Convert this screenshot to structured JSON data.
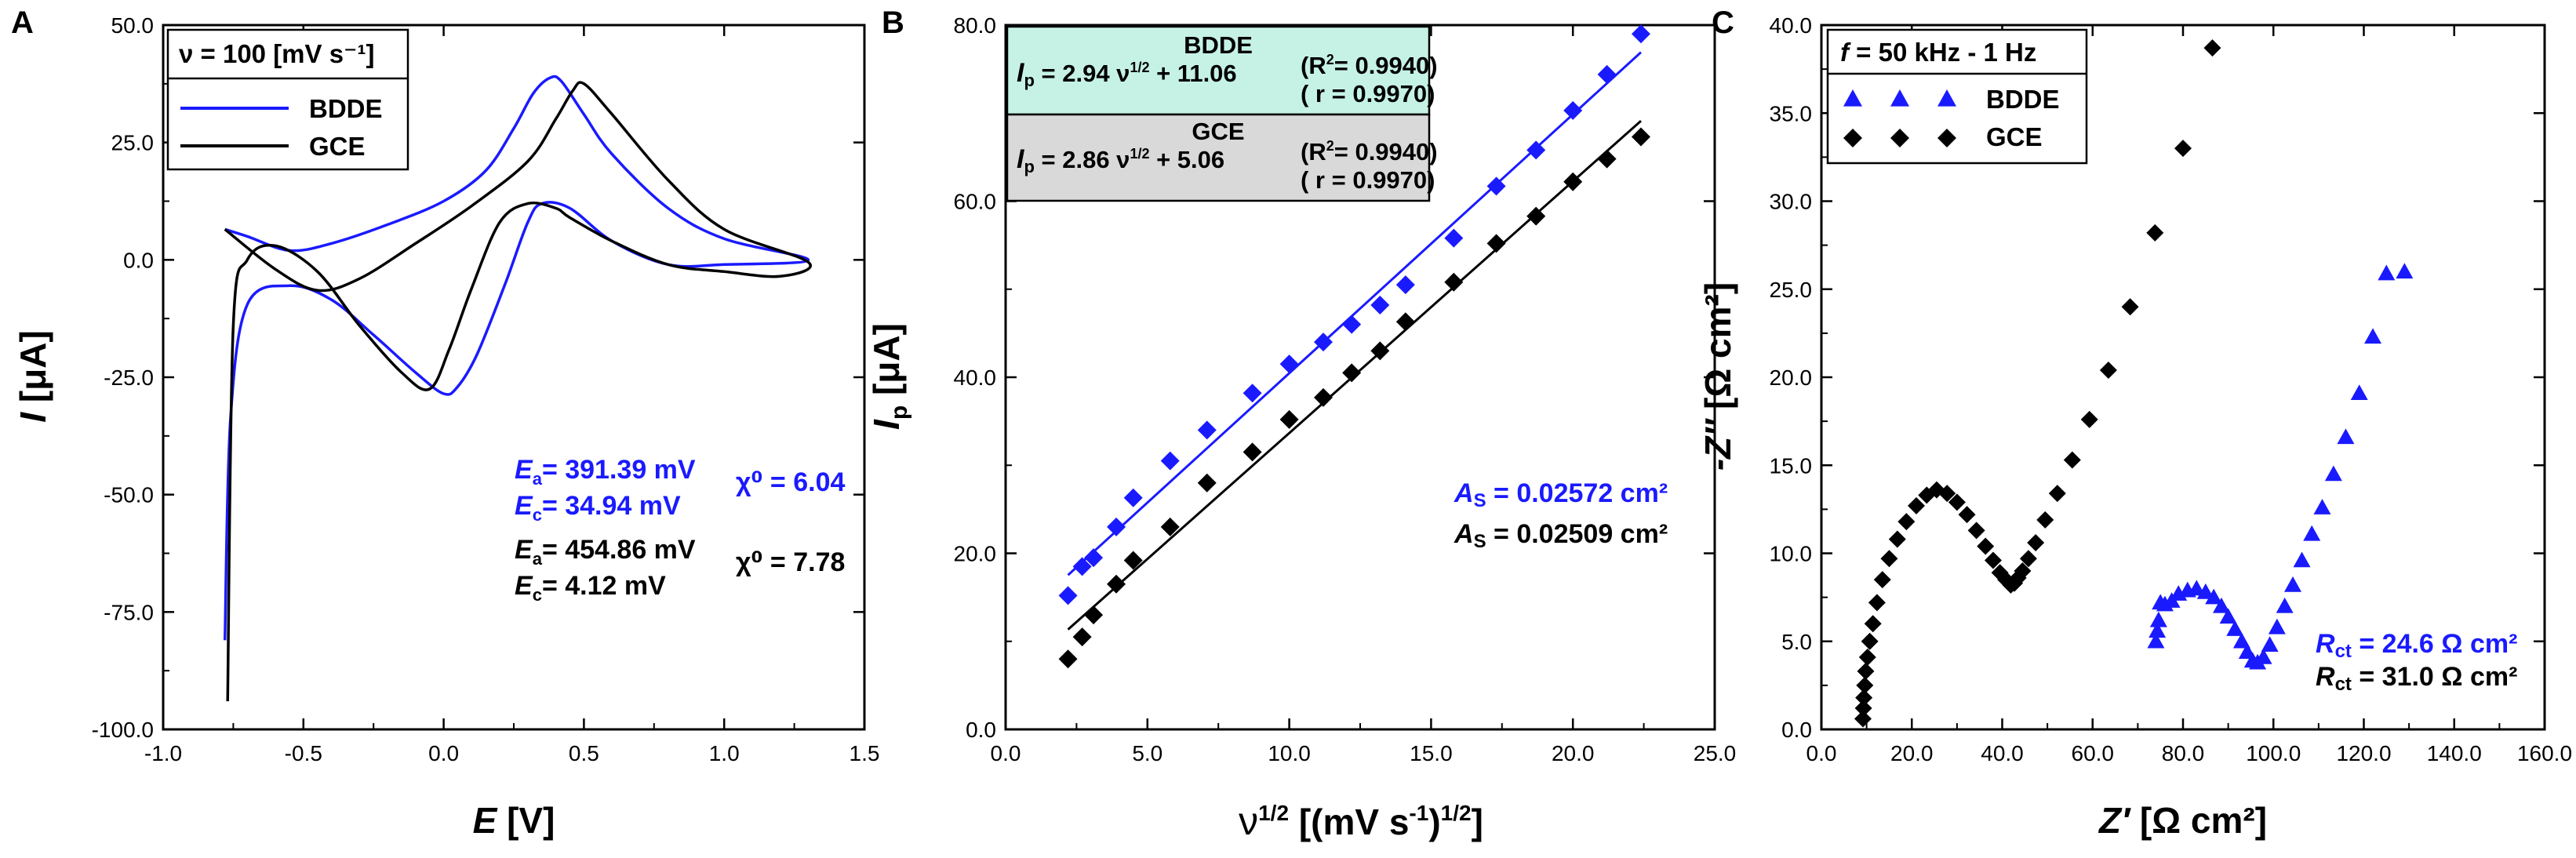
{
  "chart_data": [
    {
      "panel": "A",
      "type": "line",
      "xlabel": "E [V]",
      "xlabel_italic": "E",
      "xlabel_unit": "[V]",
      "ylabel": "I [μA]",
      "ylabel_italic": "I",
      "ylabel_unit": "[μA]",
      "xlim": [
        -1.0,
        1.5
      ],
      "ylim": [
        -100.0,
        50.0
      ],
      "xticks": [
        -1.0,
        -0.5,
        0.0,
        0.5,
        1.0,
        1.5
      ],
      "xtick_labels": [
        "-1.0",
        "-0.5",
        "0.0",
        "0.5",
        "1.0",
        "1.5"
      ],
      "yticks": [
        -100.0,
        -75.0,
        -50.0,
        -25.0,
        0.0,
        25.0,
        50.0
      ],
      "ytick_labels": [
        "-100.0",
        "-75.0",
        "-50.0",
        "-25.0",
        "0.0",
        "25.0",
        "50.0"
      ],
      "legend_title": "ν = 100 [mV s⁻¹]",
      "series": [
        {
          "name": "BDDE",
          "color": "#1a1aff",
          "x": [
            -0.78,
            -0.7,
            -0.55,
            -0.4,
            -0.2,
            0.0,
            0.15,
            0.25,
            0.32,
            0.38,
            0.42,
            0.5,
            0.6,
            0.8,
            1.0,
            1.3,
            1.0,
            0.8,
            0.6,
            0.45,
            0.35,
            0.3,
            0.22,
            0.12,
            0.05,
            0.0,
            -0.1,
            -0.25,
            -0.4,
            -0.55,
            -0.7,
            -0.76,
            -0.78
          ],
          "y": [
            6.5,
            5.0,
            2.0,
            3.5,
            7.5,
            12.5,
            19.0,
            28.0,
            35.5,
            38.8,
            38.0,
            31.0,
            22.5,
            11.0,
            4.5,
            0.0,
            -1.0,
            -1.0,
            4.0,
            11.0,
            12.0,
            8.0,
            -5.0,
            -20.0,
            -27.0,
            -28.5,
            -24.0,
            -16.0,
            -8.5,
            -5.5,
            -9.5,
            -34.0,
            -81.0
          ]
        },
        {
          "name": "GCE",
          "color": "#000000",
          "x": [
            -0.78,
            -0.6,
            -0.45,
            -0.3,
            -0.1,
            0.1,
            0.3,
            0.4,
            0.46,
            0.5,
            0.6,
            0.8,
            1.0,
            1.3,
            1.2,
            1.0,
            0.8,
            0.6,
            0.45,
            0.4,
            0.3,
            0.2,
            0.1,
            0.02,
            -0.05,
            -0.15,
            -0.3,
            -0.45,
            -0.6,
            -0.7,
            -0.75,
            -0.77
          ],
          "y": [
            6.5,
            -2.0,
            -6.5,
            -4.0,
            3.5,
            11.5,
            21.0,
            30.0,
            36.0,
            37.5,
            31.0,
            17.0,
            6.5,
            -0.5,
            -3.5,
            -2.5,
            -1.0,
            4.0,
            9.0,
            11.0,
            12.0,
            8.0,
            -6.0,
            -19.0,
            -27.5,
            -24.0,
            -14.0,
            -2.5,
            3.0,
            0.0,
            -14.0,
            -94.0
          ]
        }
      ],
      "annotations": {
        "bdde_ea": "= 391.39 mV",
        "bdde_ec": "= 34.94   mV",
        "bdde_chi": "χ⁰ = 6.04",
        "gce_ea": "= 454.86 mV",
        "gce_ec": "= 4.12     mV",
        "gce_chi": "χ⁰ = 7.78",
        "ea_symbol": "E",
        "ea_sub": "a",
        "ec_sub": "c"
      }
    },
    {
      "panel": "B",
      "type": "scatter",
      "xlabel": "ν^1/2 [(mV s⁻¹)^1/2]",
      "xlabel_nu": "ν",
      "xlabel_sup": "1/2",
      "xlabel_main": "[(mV s",
      "xlabel_minus": "-1",
      "xlabel_close": ")",
      "xlabel_sup2": "1/2",
      "xlabel_end": "]",
      "ylabel": "I_p [μA]",
      "ylabel_italic": "I",
      "ylabel_sub": "p",
      "ylabel_unit": " [μA]",
      "xlim": [
        0.0,
        25.0
      ],
      "ylim": [
        0.0,
        80.0
      ],
      "xticks": [
        0.0,
        5.0,
        10.0,
        15.0,
        20.0,
        25.0
      ],
      "xtick_labels": [
        "0.0",
        "5.0",
        "10.0",
        "15.0",
        "20.0",
        "25.0"
      ],
      "yticks": [
        0.0,
        20.0,
        40.0,
        60.0,
        80.0
      ],
      "ytick_labels": [
        "0.0",
        "20.0",
        "40.0",
        "60.0",
        "80.0"
      ],
      "series": [
        {
          "name": "BDDE",
          "color": "#1a1aff",
          "marker": "diamond",
          "x": [
            2.2,
            2.7,
            3.1,
            3.9,
            4.5,
            5.8,
            7.1,
            8.7,
            10.0,
            11.2,
            12.2,
            13.2,
            14.1,
            15.8,
            17.3,
            18.7,
            20.0,
            21.2,
            22.4
          ],
          "y": [
            15.2,
            18.5,
            19.5,
            23.0,
            26.3,
            30.5,
            34.0,
            38.2,
            41.5,
            44.0,
            46.0,
            48.2,
            50.5,
            55.8,
            61.7,
            65.8,
            70.3,
            74.4,
            79.0
          ],
          "fit": {
            "slope": 2.94,
            "intercept": 11.06
          }
        },
        {
          "name": "GCE",
          "color": "#000000",
          "marker": "diamond",
          "x": [
            2.2,
            2.7,
            3.1,
            3.9,
            4.5,
            5.8,
            7.1,
            8.7,
            10.0,
            11.2,
            12.2,
            13.2,
            14.1,
            15.8,
            17.3,
            18.7,
            20.0,
            21.2,
            22.4
          ],
          "y": [
            8.0,
            10.5,
            13.0,
            16.5,
            19.2,
            23.0,
            28.0,
            31.5,
            35.2,
            37.7,
            40.5,
            43.0,
            46.3,
            50.8,
            55.2,
            58.3,
            62.2,
            64.8,
            67.3
          ],
          "fit": {
            "slope": 2.86,
            "intercept": 5.06
          }
        }
      ],
      "equations": {
        "bdde_name": "BDDE",
        "bdde_eq_i": "I",
        "bdde_eq_p": "p",
        "bdde_eq_main": " = 2.94 ν",
        "bdde_eq_sup": "1/2",
        "bdde_eq_tail": " + 11.06",
        "bdde_r2_pre": "(R",
        "bdde_r2_sup": "2",
        "bdde_r2_post": "= 0.9940)",
        "bdde_r": "( r = 0.9970)",
        "gce_name": "GCE",
        "gce_eq_i": "I",
        "gce_eq_p": "p",
        "gce_eq_main": " = 2.86 ν",
        "gce_eq_sup": "1/2",
        "gce_eq_tail": " + 5.06",
        "gce_r2_pre": "(R",
        "gce_r2_sup": "2",
        "gce_r2_post": "= 0.9940)",
        "gce_r": "( r = 0.9970)",
        "bdde_box_color": "#c6f2e6",
        "gce_box_color": "#d9d9d9"
      },
      "annotations": {
        "as_symbol": "A",
        "as_sub": "S",
        "bdde_as": " = 0.02572 cm²",
        "gce_as": " = 0.02509 cm²"
      }
    },
    {
      "panel": "C",
      "type": "scatter",
      "xlabel": "Z′ [Ω cm²]",
      "xlabel_italic": "Z′",
      "xlabel_unit": " [Ω cm²]",
      "ylabel": "-Z″ [Ω cm²]",
      "ylabel_italic": "-Z″",
      "ylabel_unit": " [Ω cm²]",
      "xlim": [
        0.0,
        160.0
      ],
      "ylim": [
        0.0,
        40.0
      ],
      "xticks": [
        0.0,
        20.0,
        40.0,
        60.0,
        80.0,
        100.0,
        120.0,
        140.0,
        160.0
      ],
      "xtick_labels": [
        "0.0",
        "20.0",
        "40.0",
        "60.0",
        "80.0",
        "100.0",
        "120.0",
        "140.0",
        "160.0"
      ],
      "yticks": [
        0.0,
        5.0,
        10.0,
        15.0,
        20.0,
        25.0,
        30.0,
        35.0,
        40.0
      ],
      "ytick_labels": [
        "0.0",
        "5.0",
        "10.0",
        "15.0",
        "20.0",
        "25.0",
        "30.0",
        "35.0",
        "40.0"
      ],
      "legend_title_italic": "f",
      "legend_title": " = 50 kHz - 1 Hz",
      "series": [
        {
          "name": "BDDE",
          "color": "#1a1aff",
          "marker": "triangle",
          "x": [
            74.0,
            74.3,
            74.6,
            75.0,
            76.0,
            77.5,
            79.0,
            81.0,
            83.0,
            85.0,
            86.8,
            88.5,
            90.0,
            91.5,
            93.0,
            94.2,
            95.4,
            96.5,
            97.8,
            99.2,
            100.8,
            102.5,
            104.3,
            106.3,
            108.5,
            110.8,
            113.3,
            116.0,
            119.0,
            122.0,
            125.0,
            129.0
          ],
          "y": [
            5.0,
            5.6,
            6.2,
            7.2,
            7.1,
            7.3,
            7.7,
            7.9,
            8.0,
            7.8,
            7.5,
            7.0,
            6.4,
            5.7,
            5.0,
            4.4,
            3.9,
            3.8,
            4.1,
            4.8,
            5.8,
            7.0,
            8.2,
            9.6,
            11.1,
            12.6,
            14.5,
            16.6,
            19.1,
            22.3,
            25.9,
            26.0
          ],
          "rct_symbol": "R",
          "rct_sub": "ct",
          "rct_value": " = 24.6 Ω cm²"
        },
        {
          "name": "GCE",
          "color": "#000000",
          "marker": "diamond",
          "x": [
            9.2,
            9.3,
            9.4,
            9.6,
            9.8,
            10.2,
            10.7,
            11.4,
            12.3,
            13.5,
            15.0,
            16.8,
            18.8,
            21.0,
            23.3,
            25.5,
            27.8,
            30.0,
            32.2,
            34.3,
            36.3,
            38.0,
            39.5,
            40.8,
            41.9,
            42.7,
            43.5,
            44.5,
            45.8,
            47.4,
            49.5,
            52.2,
            55.5,
            59.3,
            63.5,
            68.3,
            73.8,
            80.0,
            86.5
          ],
          "y": [
            0.6,
            1.2,
            1.8,
            2.5,
            3.3,
            4.1,
            5.0,
            6.0,
            7.2,
            8.5,
            9.7,
            10.8,
            11.8,
            12.7,
            13.3,
            13.6,
            13.4,
            12.9,
            12.2,
            11.3,
            10.4,
            9.6,
            8.9,
            8.5,
            8.2,
            8.3,
            8.6,
            9.0,
            9.7,
            10.6,
            11.9,
            13.4,
            15.3,
            17.6,
            20.4,
            24.0,
            28.2,
            33.0,
            38.7
          ],
          "rct_symbol": "R",
          "rct_sub": "ct",
          "rct_value": " = 31.0 Ω cm²"
        }
      ]
    }
  ]
}
